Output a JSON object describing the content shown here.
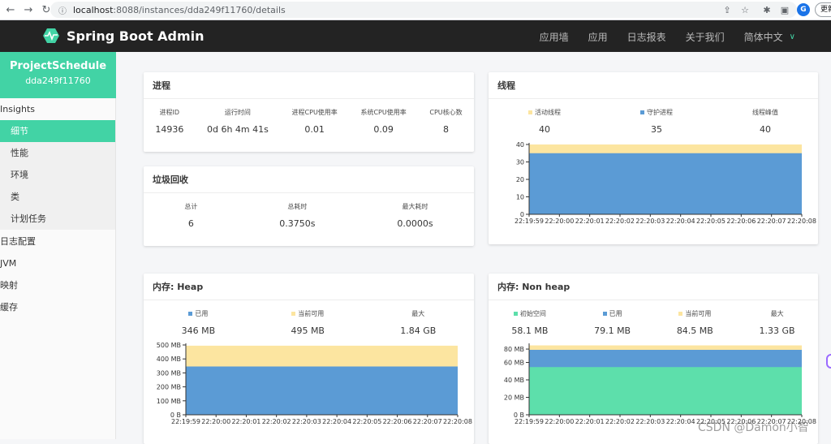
{
  "browser": {
    "url_host": "localhost",
    "url_path": ":8088/instances/dda249f11760/details",
    "profile_initial": "G",
    "update_label": "更新"
  },
  "app": {
    "title": "Spring Boot Admin",
    "nav": [
      "应用墙",
      "应用",
      "日志报表",
      "关于我们"
    ],
    "language": "简体中文"
  },
  "sidebar": {
    "app_name": "ProjectSchedule",
    "instance_id": "dda249f11760",
    "items": [
      {
        "label": "Insights",
        "level": "top"
      },
      {
        "label": "细节",
        "level": "sub",
        "active": true
      },
      {
        "label": "性能",
        "level": "sub"
      },
      {
        "label": "环境",
        "level": "sub"
      },
      {
        "label": "类",
        "level": "sub"
      },
      {
        "label": "计划任务",
        "level": "sub"
      },
      {
        "label": "日志配置",
        "level": "top"
      },
      {
        "label": "JVM",
        "level": "top"
      },
      {
        "label": "映射",
        "level": "top"
      },
      {
        "label": "缓存",
        "level": "top"
      }
    ]
  },
  "process": {
    "title": "进程",
    "stats": [
      {
        "label": "进程ID",
        "value": "14936"
      },
      {
        "label": "运行时间",
        "value": "0d 6h 4m 41s"
      },
      {
        "label": "进程CPU使用率",
        "value": "0.01"
      },
      {
        "label": "系统CPU使用率",
        "value": "0.09"
      },
      {
        "label": "CPU核心数",
        "value": "8"
      }
    ]
  },
  "gc": {
    "title": "垃圾回收",
    "stats": [
      {
        "label": "总计",
        "value": "6"
      },
      {
        "label": "总耗时",
        "value": "0.3750s"
      },
      {
        "label": "最大耗时",
        "value": "0.0000s"
      }
    ]
  },
  "threads": {
    "title": "线程",
    "stats": [
      {
        "label": "活动线程",
        "value": "40",
        "color": "#fce5a0"
      },
      {
        "label": "守护进程",
        "value": "35",
        "color": "#5b9bd5"
      },
      {
        "label": "线程峰值",
        "value": "40",
        "color": null
      }
    ]
  },
  "heap": {
    "title": "内存: Heap",
    "stats": [
      {
        "label": "已用",
        "value": "346 MB",
        "color": "#5b9bd5"
      },
      {
        "label": "当前可用",
        "value": "495 MB",
        "color": "#fce5a0"
      },
      {
        "label": "最大",
        "value": "1.84 GB",
        "color": null
      }
    ]
  },
  "nonheap": {
    "title": "内存: Non heap",
    "stats": [
      {
        "label": "初始空间",
        "value": "58.1 MB",
        "color": "#5ddfab"
      },
      {
        "label": "已用",
        "value": "79.1 MB",
        "color": "#5b9bd5"
      },
      {
        "label": "当前可用",
        "value": "84.5 MB",
        "color": "#fce5a0"
      },
      {
        "label": "最大",
        "value": "1.33 GB",
        "color": null
      }
    ]
  },
  "chart_data": [
    {
      "type": "area",
      "x": [
        "22:19:59",
        "22:20:00",
        "22:20:01",
        "22:20:02",
        "22:20:03",
        "22:20:04",
        "22:20:05",
        "22:20:06",
        "22:20:07",
        "22:20:08"
      ],
      "ylim": [
        0,
        40
      ],
      "yticks": [
        "0",
        "10",
        "20",
        "30",
        "40"
      ],
      "series": [
        {
          "name": "活动线程",
          "values": [
            40,
            40,
            40,
            40,
            40,
            40,
            40,
            40,
            40,
            40
          ],
          "color": "#fce5a0"
        },
        {
          "name": "守护进程",
          "values": [
            35,
            35,
            35,
            35,
            35,
            35,
            35,
            35,
            35,
            35
          ],
          "color": "#5b9bd5"
        }
      ]
    },
    {
      "type": "area",
      "x": [
        "22:19:59",
        "22:20:00",
        "22:20:01",
        "22:20:02",
        "22:20:03",
        "22:20:04",
        "22:20:05",
        "22:20:06",
        "22:20:07",
        "22:20:08"
      ],
      "ylim": [
        0,
        500
      ],
      "yticks": [
        "0 B",
        "100 MB",
        "200 MB",
        "300 MB",
        "400 MB",
        "500 MB"
      ],
      "series": [
        {
          "name": "当前可用",
          "values": [
            495,
            495,
            495,
            495,
            495,
            495,
            495,
            495,
            495,
            495
          ],
          "color": "#fce5a0"
        },
        {
          "name": "已用",
          "values": [
            346,
            346,
            346,
            346,
            346,
            346,
            346,
            346,
            346,
            346
          ],
          "color": "#5b9bd5"
        }
      ]
    },
    {
      "type": "area",
      "x": [
        "22:19:59",
        "22:20:00",
        "22:20:01",
        "22:20:02",
        "22:20:03",
        "22:20:04",
        "22:20:05",
        "22:20:06",
        "22:20:07",
        "22:20:08"
      ],
      "ylim": [
        0,
        85
      ],
      "yticks": [
        "0 B",
        "20 MB",
        "40 MB",
        "60 MB",
        "80 MB"
      ],
      "series": [
        {
          "name": "当前可用",
          "values": [
            84.5,
            84.5,
            84.5,
            84.5,
            84.5,
            84.5,
            84.5,
            84.5,
            84.5,
            84.5
          ],
          "color": "#fce5a0"
        },
        {
          "name": "已用",
          "values": [
            79.1,
            79.1,
            79.1,
            79.1,
            79.1,
            79.1,
            79.1,
            79.1,
            79.1,
            79.1
          ],
          "color": "#5b9bd5"
        },
        {
          "name": "初始空间",
          "values": [
            58.1,
            58.1,
            58.1,
            58.1,
            58.1,
            58.1,
            58.1,
            58.1,
            58.1,
            58.1
          ],
          "color": "#5ddfab"
        }
      ]
    }
  ],
  "watermark": "CSDN @Damon小智"
}
